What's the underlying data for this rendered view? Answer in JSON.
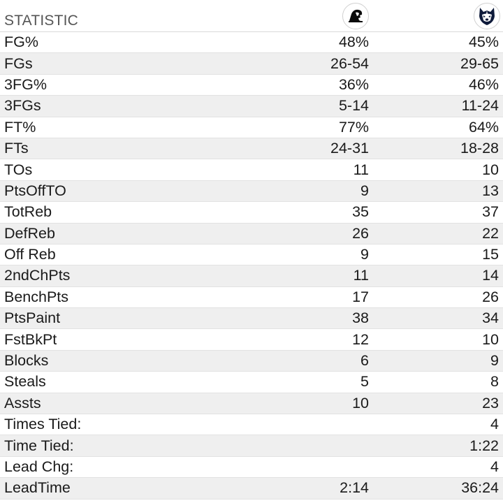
{
  "header": {
    "title": "STATISTIC",
    "team1_logo_icon": "providence-friars-logo-icon",
    "team2_logo_icon": "uconn-huskies-logo-icon"
  },
  "rows": [
    {
      "label": "FG%",
      "team1": "48%",
      "team2": "45%"
    },
    {
      "label": "FGs",
      "team1": "26-54",
      "team2": "29-65"
    },
    {
      "label": "3FG%",
      "team1": "36%",
      "team2": "46%"
    },
    {
      "label": "3FGs",
      "team1": "5-14",
      "team2": "11-24"
    },
    {
      "label": "FT%",
      "team1": "77%",
      "team2": "64%"
    },
    {
      "label": "FTs",
      "team1": "24-31",
      "team2": "18-28"
    },
    {
      "label": "TOs",
      "team1": "11",
      "team2": "10"
    },
    {
      "label": "PtsOffTO",
      "team1": "9",
      "team2": "13"
    },
    {
      "label": "TotReb",
      "team1": "35",
      "team2": "37"
    },
    {
      "label": "DefReb",
      "team1": "26",
      "team2": "22"
    },
    {
      "label": "Off Reb",
      "team1": "9",
      "team2": "15"
    },
    {
      "label": "2ndChPts",
      "team1": "11",
      "team2": "14"
    },
    {
      "label": "BenchPts",
      "team1": "17",
      "team2": "26"
    },
    {
      "label": "PtsPaint",
      "team1": "38",
      "team2": "34"
    },
    {
      "label": "FstBkPt",
      "team1": "12",
      "team2": "10"
    },
    {
      "label": "Blocks",
      "team1": "6",
      "team2": "9"
    },
    {
      "label": "Steals",
      "team1": "5",
      "team2": "8"
    },
    {
      "label": "Assts",
      "team1": "10",
      "team2": "23"
    },
    {
      "label": "Times Tied:",
      "team1": "",
      "team2": "4"
    },
    {
      "label": "Time Tied:",
      "team1": "",
      "team2": "1:22"
    },
    {
      "label": "Lead Chg:",
      "team1": "",
      "team2": "4"
    },
    {
      "label": "LeadTime",
      "team1": "2:14",
      "team2": "36:24"
    }
  ]
}
